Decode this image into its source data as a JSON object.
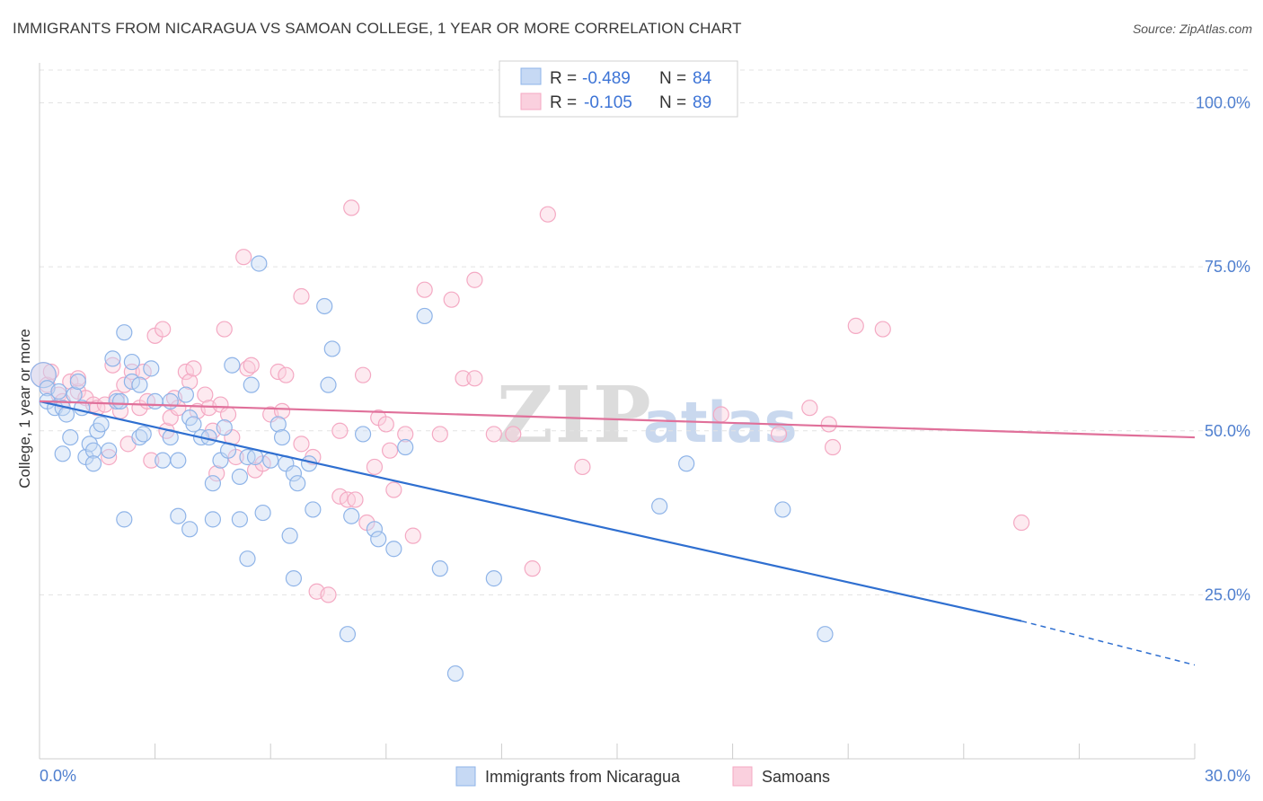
{
  "title": "IMMIGRANTS FROM NICARAGUA VS SAMOAN COLLEGE, 1 YEAR OR MORE CORRELATION CHART",
  "source": "Source: ZipAtlas.com",
  "watermark": {
    "zip": "ZIP",
    "atlas": "atlas"
  },
  "chart_data": {
    "type": "scatter",
    "title": "IMMIGRANTS FROM NICARAGUA VS SAMOAN COLLEGE, 1 YEAR OR MORE CORRELATION CHART",
    "xlabel": "",
    "ylabel": "College, 1 year or more",
    "xlim": [
      0,
      30
    ],
    "ylim": [
      0,
      105
    ],
    "x_tick_labels": [
      "0.0%",
      "30.0%"
    ],
    "y_ticks": [
      {
        "value": 100,
        "label": "100.0%"
      },
      {
        "value": 75,
        "label": "75.0%"
      },
      {
        "value": 50,
        "label": "50.0%"
      },
      {
        "value": 25,
        "label": "25.0%"
      }
    ],
    "legend": [
      {
        "r_label": "R =",
        "r": "-0.489",
        "n_label": "N =",
        "n": "84"
      },
      {
        "r_label": "R =",
        "r": "-0.105",
        "n_label": "N =",
        "n": "89"
      }
    ],
    "series": [
      {
        "name": "Immigrants from Nicaragua",
        "color": "#8fb4e8",
        "line_color": "#2f6fd0",
        "trend": {
          "x0": 0.0,
          "y0": 54.5,
          "x1": 25.5,
          "y1": 21.0,
          "dash_x1": 30.0,
          "dash_y1": 14.3
        },
        "points": [
          [
            0.1,
            58.5
          ],
          [
            0.2,
            56.5
          ],
          [
            0.2,
            54.5
          ],
          [
            0.4,
            53.5
          ],
          [
            0.5,
            56
          ],
          [
            0.6,
            53.5
          ],
          [
            0.6,
            46.5
          ],
          [
            0.7,
            52.5
          ],
          [
            0.8,
            49
          ],
          [
            0.9,
            55.5
          ],
          [
            1.0,
            57.5
          ],
          [
            1.1,
            53.5
          ],
          [
            1.2,
            46
          ],
          [
            1.3,
            48
          ],
          [
            1.4,
            47
          ],
          [
            1.4,
            45
          ],
          [
            1.5,
            50
          ],
          [
            1.6,
            51
          ],
          [
            1.8,
            47
          ],
          [
            1.9,
            61
          ],
          [
            2.0,
            54.5
          ],
          [
            2.1,
            54.5
          ],
          [
            2.2,
            65
          ],
          [
            2.2,
            36.5
          ],
          [
            2.4,
            57.5
          ],
          [
            2.4,
            60.5
          ],
          [
            2.6,
            49
          ],
          [
            2.6,
            57
          ],
          [
            2.7,
            49.5
          ],
          [
            2.9,
            59.5
          ],
          [
            3.0,
            54.5
          ],
          [
            3.2,
            45.5
          ],
          [
            3.4,
            54.5
          ],
          [
            3.4,
            49
          ],
          [
            3.6,
            45.5
          ],
          [
            3.6,
            37
          ],
          [
            3.8,
            55.5
          ],
          [
            3.9,
            52
          ],
          [
            3.9,
            35
          ],
          [
            4.0,
            51
          ],
          [
            4.2,
            49
          ],
          [
            4.4,
            49
          ],
          [
            4.5,
            42
          ],
          [
            4.5,
            36.5
          ],
          [
            4.7,
            45.5
          ],
          [
            4.8,
            50.5
          ],
          [
            4.9,
            47
          ],
          [
            5.0,
            60
          ],
          [
            5.2,
            43
          ],
          [
            5.2,
            36.5
          ],
          [
            5.4,
            46
          ],
          [
            5.4,
            30.5
          ],
          [
            5.5,
            57
          ],
          [
            5.6,
            46
          ],
          [
            5.7,
            75.5
          ],
          [
            5.8,
            37.5
          ],
          [
            6.0,
            45.5
          ],
          [
            6.2,
            51
          ],
          [
            6.3,
            49
          ],
          [
            6.4,
            45
          ],
          [
            6.5,
            34
          ],
          [
            6.6,
            43.5
          ],
          [
            6.6,
            27.5
          ],
          [
            6.7,
            42
          ],
          [
            7.0,
            45
          ],
          [
            7.1,
            38
          ],
          [
            7.4,
            69
          ],
          [
            7.5,
            57
          ],
          [
            7.6,
            62.5
          ],
          [
            8.1,
            37
          ],
          [
            8.4,
            49.5
          ],
          [
            8.7,
            35
          ],
          [
            8.8,
            33.5
          ],
          [
            9.2,
            32
          ],
          [
            9.5,
            47.5
          ],
          [
            10.0,
            67.5
          ],
          [
            10.4,
            29
          ],
          [
            10.8,
            13
          ],
          [
            11.8,
            27.5
          ],
          [
            8.0,
            19
          ],
          [
            16.1,
            38.5
          ],
          [
            16.8,
            45
          ],
          [
            19.3,
            38
          ],
          [
            20.4,
            19
          ]
        ]
      },
      {
        "name": "Samoans",
        "color": "#f4a9c3",
        "line_color": "#e0709a",
        "trend": {
          "x0": 0.0,
          "y0": 54.5,
          "x1": 30.0,
          "y1": 49.0
        },
        "points": [
          [
            0.1,
            58.5
          ],
          [
            0.2,
            57
          ],
          [
            0.3,
            59
          ],
          [
            0.5,
            55.5
          ],
          [
            0.6,
            54.5
          ],
          [
            0.8,
            57.5
          ],
          [
            1.0,
            56
          ],
          [
            1.0,
            58
          ],
          [
            1.2,
            55
          ],
          [
            1.4,
            54
          ],
          [
            1.5,
            53.5
          ],
          [
            1.7,
            54
          ],
          [
            1.8,
            46
          ],
          [
            1.9,
            60
          ],
          [
            2.0,
            55
          ],
          [
            2.1,
            53
          ],
          [
            2.2,
            57
          ],
          [
            2.3,
            48
          ],
          [
            2.4,
            59
          ],
          [
            2.6,
            53.5
          ],
          [
            2.7,
            59
          ],
          [
            2.8,
            54.5
          ],
          [
            2.9,
            45.5
          ],
          [
            3.0,
            64.5
          ],
          [
            3.2,
            65.5
          ],
          [
            3.3,
            50
          ],
          [
            3.4,
            52
          ],
          [
            3.5,
            55
          ],
          [
            3.6,
            53.5
          ],
          [
            3.8,
            59
          ],
          [
            3.9,
            57.5
          ],
          [
            4.0,
            59.5
          ],
          [
            4.1,
            53
          ],
          [
            4.3,
            55.5
          ],
          [
            4.4,
            53.5
          ],
          [
            4.5,
            50
          ],
          [
            4.6,
            43.5
          ],
          [
            4.7,
            54
          ],
          [
            4.8,
            65.5
          ],
          [
            4.9,
            52.5
          ],
          [
            5.0,
            49
          ],
          [
            5.1,
            46
          ],
          [
            5.3,
            76.5
          ],
          [
            5.4,
            59.5
          ],
          [
            5.5,
            60
          ],
          [
            5.6,
            44
          ],
          [
            5.8,
            45
          ],
          [
            6.0,
            52.5
          ],
          [
            6.2,
            59
          ],
          [
            6.3,
            53
          ],
          [
            6.4,
            58.5
          ],
          [
            6.8,
            48
          ],
          [
            7.1,
            46
          ],
          [
            6.8,
            70.5
          ],
          [
            7.2,
            25.5
          ],
          [
            7.5,
            25
          ],
          [
            7.8,
            40
          ],
          [
            8.0,
            39.5
          ],
          [
            8.2,
            39.5
          ],
          [
            8.4,
            58.5
          ],
          [
            8.5,
            36
          ],
          [
            8.7,
            44.5
          ],
          [
            8.8,
            52
          ],
          [
            9.0,
            51
          ],
          [
            9.2,
            41
          ],
          [
            9.5,
            49.5
          ],
          [
            9.7,
            34
          ],
          [
            10.0,
            71.5
          ],
          [
            10.4,
            49.5
          ],
          [
            10.7,
            70
          ],
          [
            11.0,
            58
          ],
          [
            11.3,
            73
          ],
          [
            11.8,
            49.5
          ],
          [
            12.3,
            49.5
          ],
          [
            11.3,
            58
          ],
          [
            8.1,
            84
          ],
          [
            12.8,
            29
          ],
          [
            13.2,
            83
          ],
          [
            14.1,
            44.5
          ],
          [
            7.8,
            50
          ],
          [
            9.1,
            47
          ],
          [
            17.7,
            52.5
          ],
          [
            19.2,
            49.5
          ],
          [
            20.0,
            53.5
          ],
          [
            20.5,
            51
          ],
          [
            20.6,
            47.5
          ],
          [
            21.2,
            66
          ],
          [
            21.9,
            65.5
          ],
          [
            25.5,
            36
          ]
        ]
      }
    ]
  }
}
